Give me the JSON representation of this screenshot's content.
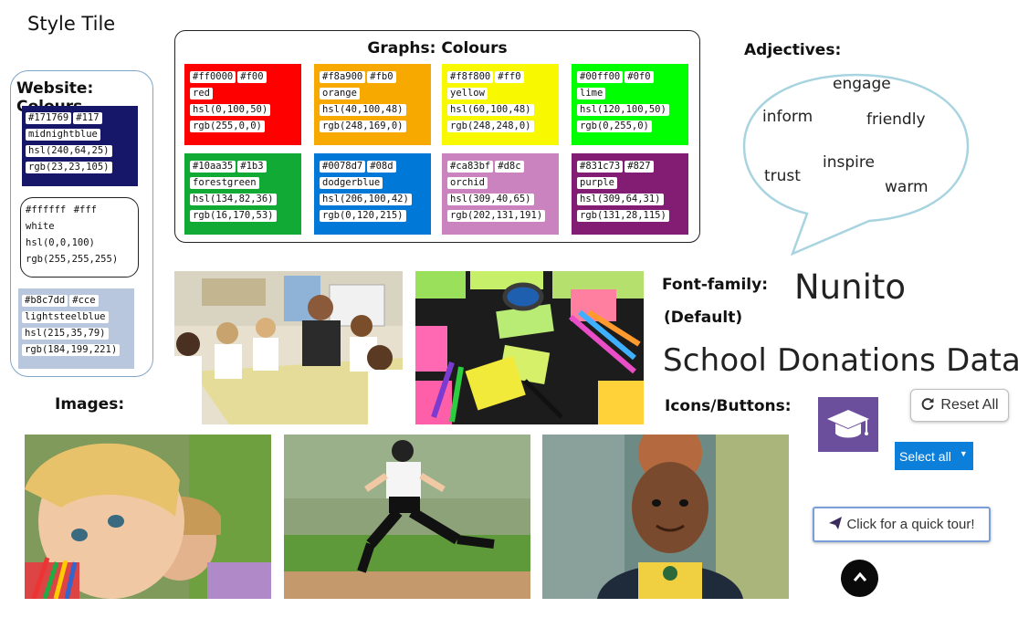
{
  "title": "Style Tile",
  "website_colours": {
    "heading": "Website: Colours",
    "swatches": [
      {
        "hex": "#171769",
        "short": "#117",
        "name": "midnightblue",
        "hsl": "hsl(240,64,25)",
        "rgb": "rgb(23,23,105)",
        "bg": "#171769"
      },
      {
        "hex": "#ffffff",
        "short": "#fff",
        "name": "white",
        "hsl": "hsl(0,0,100)",
        "rgb": "rgb(255,255,255)",
        "bg": "#ffffff"
      },
      {
        "hex": "#b8c7dd",
        "short": "#cce",
        "name": "lightsteelblue",
        "hsl": "hsl(215,35,79)",
        "rgb": "rgb(184,199,221)",
        "bg": "#b8c7dd"
      }
    ]
  },
  "graph_colours": {
    "heading": "Graphs:  Colours",
    "swatches": [
      {
        "hex": "#ff0000",
        "short": "#f00",
        "name": "red",
        "hsl": "hsl(0,100,50)",
        "rgb": "rgb(255,0,0)",
        "bg": "#ff0000"
      },
      {
        "hex": "#f8a900",
        "short": "#fb0",
        "name": "orange",
        "hsl": "hsl(40,100,48)",
        "rgb": "rgb(248,169,0)",
        "bg": "#f8a900"
      },
      {
        "hex": "#f8f800",
        "short": "#ff0",
        "name": "yellow",
        "hsl": "hsl(60,100,48)",
        "rgb": "rgb(248,248,0)",
        "bg": "#f8f800"
      },
      {
        "hex": "#00ff00",
        "short": "#0f0",
        "name": "lime",
        "hsl": "hsl(120,100,50)",
        "rgb": "rgb(0,255,0)",
        "bg": "#00ff00"
      },
      {
        "hex": "#10aa35",
        "short": "#1b3",
        "name": "forestgreen",
        "hsl": "hsl(134,82,36)",
        "rgb": "rgb(16,170,53)",
        "bg": "#10aa35"
      },
      {
        "hex": "#0078d7",
        "short": "#08d",
        "name": "dodgerblue",
        "hsl": "hsl(206,100,42)",
        "rgb": "rgb(0,120,215)",
        "bg": "#0078d7"
      },
      {
        "hex": "#ca83bf",
        "short": "#d8c",
        "name": "orchid",
        "hsl": "hsl(309,40,65)",
        "rgb": "rgb(202,131,191)",
        "bg": "#ca83bf"
      },
      {
        "hex": "#831c73",
        "short": "#827",
        "name": "purple",
        "hsl": "hsl(309,64,31)",
        "rgb": "rgb(131,28,115)",
        "bg": "#831c73"
      }
    ]
  },
  "adjectives": {
    "heading": "Adjectives:",
    "words": [
      "engage",
      "inform",
      "friendly",
      "trust",
      "inspire",
      "warm"
    ]
  },
  "images": {
    "heading": "Images:"
  },
  "font_family": {
    "label": "Font-family:",
    "default_label": "(Default)",
    "font_name": "Nunito",
    "sample_text": "School Donations  Data"
  },
  "icons_buttons": {
    "heading": "Icons/Buttons:",
    "reset_label": "Reset All",
    "select_label": "Select all",
    "tour_label": "Click for a quick tour!"
  }
}
